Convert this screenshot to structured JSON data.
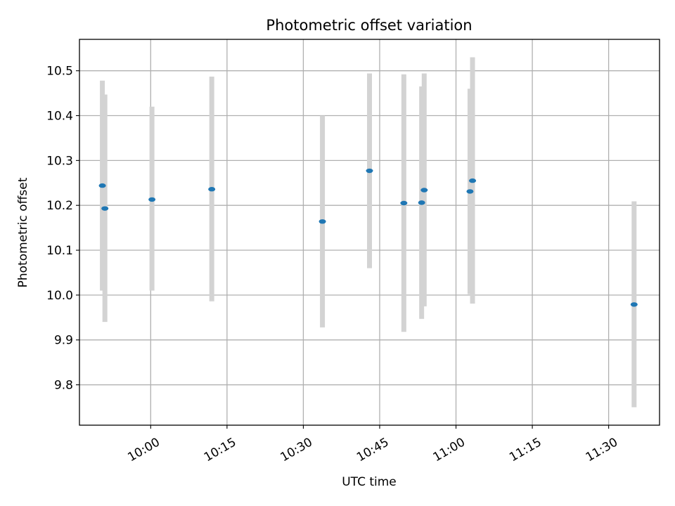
{
  "chart_data": {
    "type": "scatter",
    "title": "Photometric offset variation",
    "xlabel": "UTC time",
    "ylabel": "Photometric offset",
    "x_axis": {
      "kind": "time",
      "range": [
        "09:46",
        "11:40"
      ],
      "ticks": [
        "10:00",
        "10:15",
        "10:30",
        "10:45",
        "11:00",
        "11:15",
        "11:30"
      ]
    },
    "y_axis": {
      "range": [
        9.71,
        10.57
      ],
      "ticks": [
        "9.8",
        "9.9",
        "10.0",
        "10.1",
        "10.2",
        "10.3",
        "10.4",
        "10.5"
      ]
    },
    "grid": true,
    "colors": {
      "point": "#1f77b4",
      "error_bar": "#d3d3d3"
    },
    "points": [
      {
        "time": "09:50:30",
        "y": 10.244,
        "y_low": 10.01,
        "y_high": 10.478
      },
      {
        "time": "09:51:00",
        "y": 10.193,
        "y_low": 9.94,
        "y_high": 10.447
      },
      {
        "time": "10:00:15",
        "y": 10.213,
        "y_low": 10.01,
        "y_high": 10.42
      },
      {
        "time": "10:12:00",
        "y": 10.236,
        "y_low": 9.986,
        "y_high": 10.487
      },
      {
        "time": "10:33:45",
        "y": 10.164,
        "y_low": 9.928,
        "y_high": 10.4
      },
      {
        "time": "10:43:00",
        "y": 10.277,
        "y_low": 10.06,
        "y_high": 10.494
      },
      {
        "time": "10:49:45",
        "y": 10.205,
        "y_low": 9.918,
        "y_high": 10.492
      },
      {
        "time": "10:53:15",
        "y": 10.206,
        "y_low": 9.947,
        "y_high": 10.465
      },
      {
        "time": "10:53:45",
        "y": 10.234,
        "y_low": 9.975,
        "y_high": 10.494
      },
      {
        "time": "11:02:45",
        "y": 10.231,
        "y_low": 10.002,
        "y_high": 10.46
      },
      {
        "time": "11:03:15",
        "y": 10.255,
        "y_low": 9.981,
        "y_high": 10.53
      },
      {
        "time": "11:35:00",
        "y": 9.979,
        "y_low": 9.75,
        "y_high": 10.209
      }
    ]
  }
}
